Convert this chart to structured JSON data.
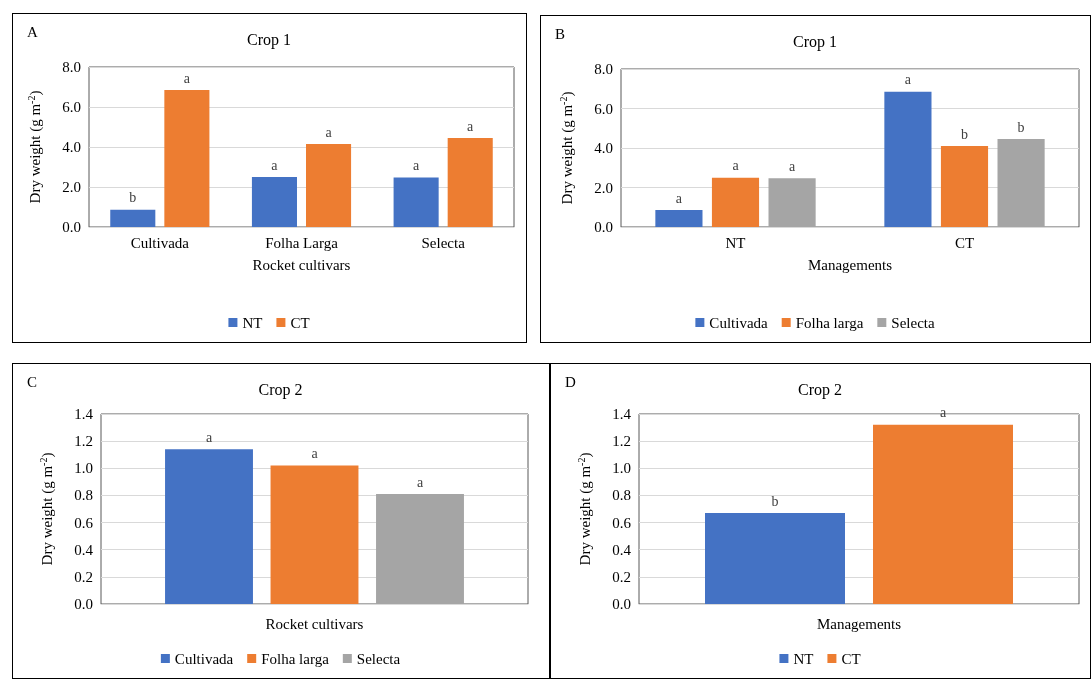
{
  "chart_data": [
    {
      "type": "bar",
      "title": "Crop 1",
      "xlabel": "Rocket cultivars",
      "ylabel": "Dry weight (g m$^{-2}$)",
      "annotations": [
        "A"
      ],
      "categories": [
        "Cultivada",
        "Folha Larga",
        "Selecta"
      ],
      "series": [
        {
          "name": "NT",
          "color": "#4472c4",
          "values": [
            0.86,
            2.5,
            2.47
          ],
          "value_labels": [
            "b",
            "a",
            "a"
          ]
        },
        {
          "name": "CT",
          "color": "#ed7d31",
          "values": [
            6.85,
            4.15,
            4.45
          ],
          "value_labels": [
            "a",
            "a",
            "a"
          ]
        }
      ],
      "ylim": [
        0,
        8
      ],
      "yticks": [
        {
          "value": 0,
          "label": "0.0"
        },
        {
          "value": 2,
          "label": "2.0"
        },
        {
          "value": 4,
          "label": "4.0"
        },
        {
          "value": 6,
          "label": "6.0"
        },
        {
          "value": 8,
          "label": "8.0"
        }
      ],
      "grid": "y",
      "legend": "bottom"
    },
    {
      "type": "bar",
      "title": "Crop 1",
      "xlabel": "Managements",
      "ylabel": "Dry weight (g m$^{-2}$)",
      "annotations": [
        "B"
      ],
      "categories": [
        "NT",
        "CT"
      ],
      "series": [
        {
          "name": "Cultivada",
          "color": "#4472c4",
          "values": [
            0.86,
            6.85
          ],
          "value_labels": [
            "a",
            "a"
          ]
        },
        {
          "name": "Folha larga",
          "color": "#ed7d31",
          "values": [
            2.5,
            4.1
          ],
          "value_labels": [
            "a",
            "b"
          ]
        },
        {
          "name": "Selecta",
          "color": "#a5a5a5",
          "values": [
            2.47,
            4.45
          ],
          "value_labels": [
            "a",
            "b"
          ]
        }
      ],
      "ylim": [
        0,
        8
      ],
      "yticks": [
        {
          "value": 0,
          "label": "0.0"
        },
        {
          "value": 2,
          "label": "2.0"
        },
        {
          "value": 4,
          "label": "4.0"
        },
        {
          "value": 6,
          "label": "6.0"
        },
        {
          "value": 8,
          "label": "8.0"
        }
      ],
      "grid": "y",
      "legend": "bottom"
    },
    {
      "type": "bar",
      "title": "Crop 2",
      "xlabel": "Rocket cultivars",
      "ylabel": "Dry weight (g m$^{-2}$)",
      "annotations": [
        "C"
      ],
      "categories": [
        null
      ],
      "series": [
        {
          "name": "Cultivada",
          "color": "#4472c4",
          "values": [
            1.14
          ],
          "value_labels": [
            "a"
          ]
        },
        {
          "name": "Folha larga",
          "color": "#ed7d31",
          "values": [
            1.02
          ],
          "value_labels": [
            "a"
          ]
        },
        {
          "name": "Selecta",
          "color": "#a5a5a5",
          "values": [
            0.81
          ],
          "value_labels": [
            "a"
          ]
        }
      ],
      "ylim": [
        0,
        1.4
      ],
      "yticks": [
        {
          "value": 0,
          "label": "0.0"
        },
        {
          "value": 0.2,
          "label": "0.2"
        },
        {
          "value": 0.4,
          "label": "0.4"
        },
        {
          "value": 0.6,
          "label": "0.6"
        },
        {
          "value": 0.8,
          "label": "0.8"
        },
        {
          "value": 1,
          "label": "1.0"
        },
        {
          "value": 1.2,
          "label": "1.2"
        },
        {
          "value": 1.4,
          "label": "1.4"
        }
      ],
      "grid": "y",
      "legend": "bottom"
    },
    {
      "type": "bar",
      "title": "Crop 2",
      "xlabel": "Managements",
      "ylabel": "Dry weight (g m$^{-2}$)",
      "annotations": [
        "D"
      ],
      "categories": [
        null
      ],
      "series": [
        {
          "name": "NT",
          "color": "#4472c4",
          "values": [
            0.67
          ],
          "value_labels": [
            "b"
          ]
        },
        {
          "name": "CT",
          "color": "#ed7d31",
          "values": [
            1.32
          ],
          "value_labels": [
            "a"
          ]
        }
      ],
      "ylim": [
        0,
        1.4
      ],
      "yticks": [
        {
          "value": 0,
          "label": "0.0"
        },
        {
          "value": 0.2,
          "label": "0.2"
        },
        {
          "value": 0.4,
          "label": "0.4"
        },
        {
          "value": 0.6,
          "label": "0.6"
        },
        {
          "value": 0.8,
          "label": "0.8"
        },
        {
          "value": 1,
          "label": "1.0"
        },
        {
          "value": 1.2,
          "label": "1.2"
        },
        {
          "value": 1.4,
          "label": "1.4"
        }
      ],
      "grid": "y",
      "legend": "bottom"
    }
  ]
}
